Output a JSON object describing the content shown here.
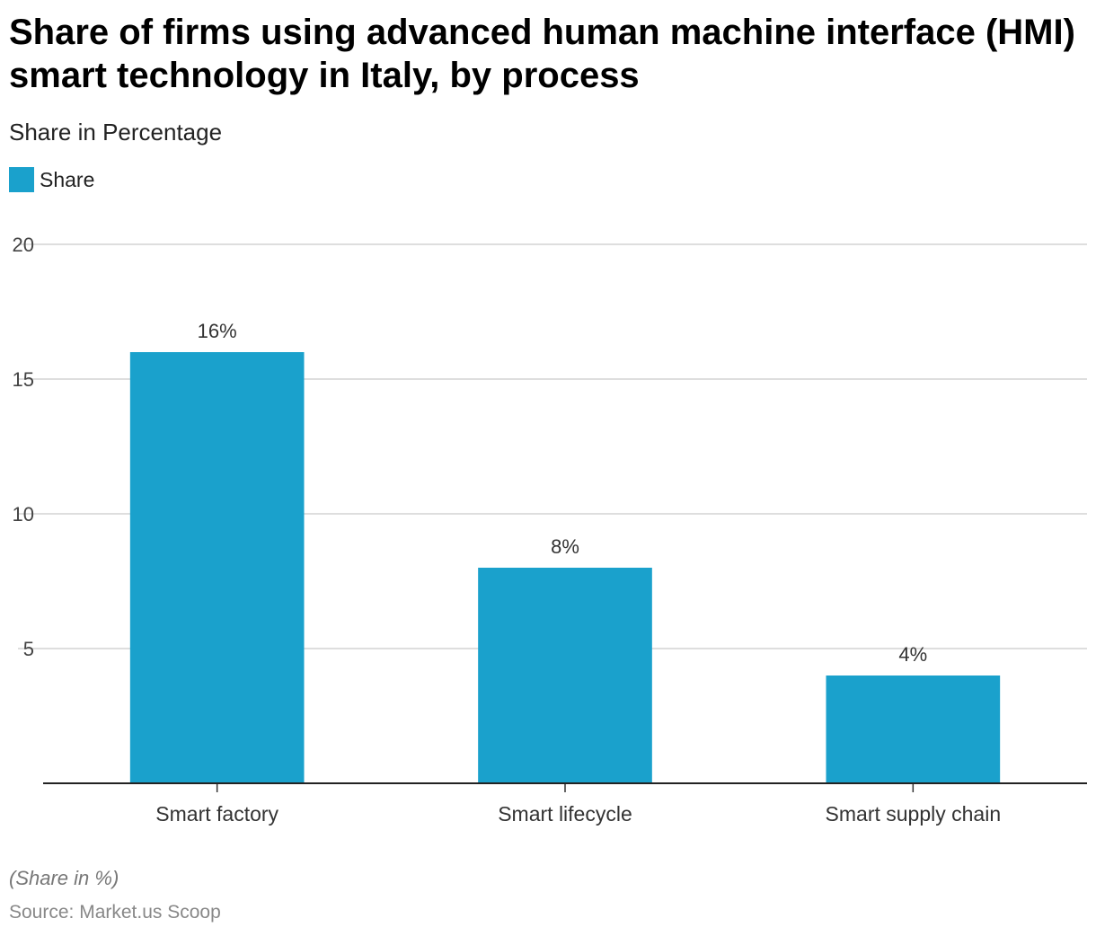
{
  "title": "Share of firms using advanced human machine interface (HMI) smart technology in Italy, by process",
  "subtitle": "Share in Percentage",
  "legend": {
    "label": "Share",
    "color": "#1aa1cc"
  },
  "note": "(Share in %)",
  "source": "Source: Market.us Scoop",
  "chart_data": {
    "type": "bar",
    "categories": [
      "Smart factory",
      "Smart lifecycle",
      "Smart supply chain"
    ],
    "series": [
      {
        "name": "Share",
        "values": [
          16,
          8,
          4
        ],
        "labels": [
          "16%",
          "8%",
          "4%"
        ],
        "color": "#1aa1cc"
      }
    ],
    "ylim": [
      0,
      20
    ],
    "yticks": [
      5,
      10,
      15,
      20
    ],
    "grid": true,
    "legend_position": "top-left"
  }
}
